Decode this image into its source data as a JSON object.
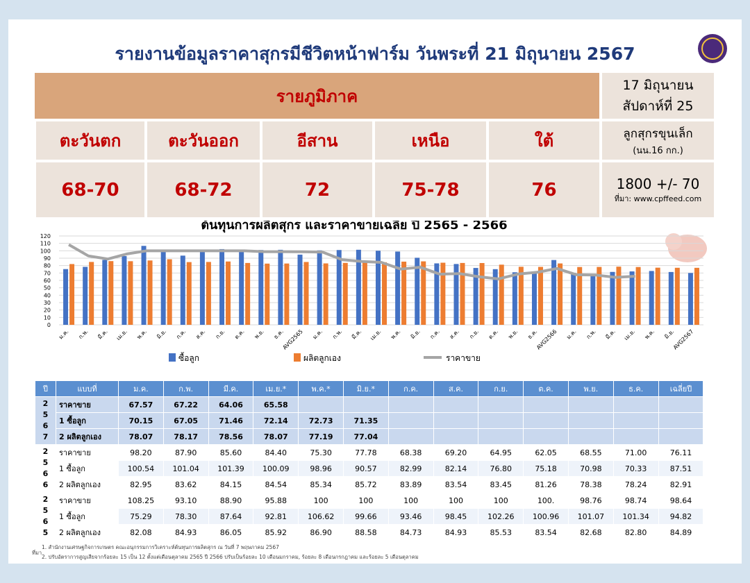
{
  "header": {
    "title": "รายงานข้อมูลราคาสุกรมีชีวิตหน้าฟาร์ม วันพระที่ 21 มิถุนายน 2567"
  },
  "region": {
    "heading": "รายภูมิภาค",
    "date": "17 มิถุนายน",
    "week": "สัปดาห์ที่ 25",
    "names": [
      "ตะวันตก",
      "ตะวันออก",
      "อีสาน",
      "เหนือ",
      "ใต้"
    ],
    "prices": [
      "68-70",
      "68-72",
      "72",
      "75-78",
      "76"
    ],
    "piglet_label": "ลูกสุกรขุนเล็ก",
    "piglet_weight": "(นน.16 กก.)",
    "piglet_price": "1800 +/- 70",
    "source": "ที่มา: www.cpffeed.com"
  },
  "chart_data": {
    "type": "bar",
    "title": "ต้นทุนการผลิตสุกร  และราคาขายเฉลี่ย ปี 2565 - 2566",
    "categories": [
      "ม.ค.",
      "ก.พ.",
      "มี.ค.",
      "เม.ย.",
      "พ.ค.",
      "มิ.ย.",
      "ก.ค.",
      "ส.ค.",
      "ก.ย.",
      "ต.ค.",
      "พ.ย.",
      "ธ.ค.",
      "AVG2565",
      "ม.ค.",
      "ก.พ.",
      "มี.ค.",
      "เม.ย.",
      "พ.ค.",
      "มิ.ย.",
      "ก.ค.",
      "ส.ค.",
      "ก.ย.",
      "ต.ค.",
      "พ.ย.",
      "ธ.ค.",
      "AVG2566",
      "ม.ค.",
      "ก.พ.",
      "มี.ค.",
      "เม.ย.",
      "พ.ค.",
      "มิ.ย.",
      "AVG2567"
    ],
    "series": [
      {
        "name": "ซื้อลูก",
        "color": "#4472c4",
        "kind": "bar",
        "values": [
          75.29,
          78.3,
          87.64,
          92.81,
          106.62,
          99.66,
          93.46,
          98.45,
          102.26,
          100.96,
          101.07,
          101.34,
          94.82,
          100.54,
          101.04,
          101.39,
          100.09,
          98.96,
          90.57,
          82.99,
          82.14,
          76.8,
          75.18,
          70.98,
          70.33,
          87.51,
          70.15,
          67.05,
          71.46,
          72.14,
          72.73,
          71.35,
          70
        ]
      },
      {
        "name": "ผลิตลูกเอง",
        "color": "#ed7d31",
        "kind": "bar",
        "values": [
          82.08,
          84.93,
          86.05,
          85.92,
          86.9,
          88.58,
          84.73,
          84.93,
          85.53,
          83.54,
          82.68,
          82.8,
          84.89,
          82.95,
          83.62,
          84.15,
          84.54,
          85.34,
          85.72,
          83.89,
          83.54,
          83.45,
          81.26,
          78.38,
          78.24,
          82.91,
          78.07,
          78.17,
          78.56,
          78.07,
          77.19,
          77.04,
          77
        ]
      },
      {
        "name": "ราคาขาย",
        "color": "#a5a5a5",
        "kind": "line",
        "values": [
          108.25,
          93.1,
          88.9,
          95.88,
          100,
          100,
          100,
          100,
          100,
          100,
          98.76,
          98.74,
          98.64,
          98.2,
          87.9,
          85.6,
          84.4,
          75.3,
          77.78,
          68.38,
          69.2,
          64.95,
          62.05,
          68.55,
          71.0,
          76.11,
          67.57,
          67.22,
          64.06,
          65.58,
          null,
          null,
          null
        ]
      }
    ],
    "ylim": [
      0,
      120
    ],
    "yticks": [
      0,
      10,
      20,
      30,
      40,
      50,
      60,
      70,
      80,
      90,
      100,
      110,
      120
    ],
    "grid": true,
    "legend": "bottom"
  },
  "table": {
    "header": [
      "ปี",
      "แบบที่",
      "ม.ค.",
      "ก.พ.",
      "มี.ค.",
      "เม.ย.*",
      "พ.ค.*",
      "มิ.ย.*",
      "ก.ค.",
      "ส.ค.",
      "ก.ย.",
      "ต.ค.",
      "พ.ย.",
      "ธ.ค.",
      "เฉลี่ยปี"
    ],
    "groups": [
      {
        "year": "2567",
        "rows": [
          {
            "label": "ราคาขาย",
            "cells": [
              "67.57",
              "67.22",
              "64.06",
              "65.58",
              null,
              null,
              null,
              null,
              null,
              null,
              null,
              null,
              null
            ]
          },
          {
            "label": "1 ซื้อลูก",
            "cells": [
              "70.15",
              "67.05",
              "71.46",
              "72.14",
              "72.73",
              "71.35",
              null,
              null,
              null,
              null,
              null,
              null,
              null
            ]
          },
          {
            "label": "2 ผลิตลูกเอง",
            "cells": [
              "78.07",
              "78.17",
              "78.56",
              "78.07",
              "77.19",
              "77.04",
              null,
              null,
              null,
              null,
              null,
              null,
              null
            ]
          }
        ]
      },
      {
        "year": "2566",
        "rows": [
          {
            "label": "ราคาขาย",
            "cells": [
              "98.20",
              "87.90",
              "85.60",
              "84.40",
              "75.30",
              "77.78",
              "68.38",
              "69.20",
              "64.95",
              "62.05",
              "68.55",
              "71.00",
              "76.11"
            ]
          },
          {
            "label": "1 ซื้อลูก",
            "cells": [
              "100.54",
              "101.04",
              "101.39",
              "100.09",
              "98.96",
              "90.57",
              "82.99",
              "82.14",
              "76.80",
              "75.18",
              "70.98",
              "70.33",
              "87.51"
            ]
          },
          {
            "label": "2 ผลิตลูกเอง",
            "cells": [
              "82.95",
              "83.62",
              "84.15",
              "84.54",
              "85.34",
              "85.72",
              "83.89",
              "83.54",
              "83.45",
              "81.26",
              "78.38",
              "78.24",
              "82.91"
            ]
          }
        ]
      },
      {
        "year": "2565",
        "rows": [
          {
            "label": "ราคาขาย",
            "cells": [
              "108.25",
              "93.10",
              "88.90",
              "95.88",
              "100",
              "100",
              "100",
              "100",
              "100",
              "100.",
              "98.76",
              "98.74",
              "98.64"
            ]
          },
          {
            "label": "1 ซื้อลูก",
            "cells": [
              "75.29",
              "78.30",
              "87.64",
              "92.81",
              "106.62",
              "99.66",
              "93.46",
              "98.45",
              "102.26",
              "100.96",
              "101.07",
              "101.34",
              "94.82"
            ]
          },
          {
            "label": "2 ผลิตลูกเอง",
            "cells": [
              "82.08",
              "84.93",
              "86.05",
              "85.92",
              "86.90",
              "88.58",
              "84.73",
              "84.93",
              "85.53",
              "83.54",
              "82.68",
              "82.80",
              "84.89"
            ]
          }
        ]
      }
    ]
  },
  "notes": {
    "source_label": "ที่มา",
    "items": [
      "1. สำนักงานเศรษฐกิจการเกษตร คณะอนุกรรมการวิเคราะห์ต้นทุนการผลิตสุกร  ณ วันที่ 7 พฤษภาคม 2567",
      "2. ปรับอัตราการสูญเสียจากร้อยละ 15 เป็น 12 ตั้งแต่เดือนตุลาคม 2565 ปี 2566 ปรับเป็นร้อยละ 10 เดือนมกราคม, ร้อยละ 8 เดือนกรกฎาคม และร้อยละ 5 เดือนตุลาคม"
    ]
  }
}
